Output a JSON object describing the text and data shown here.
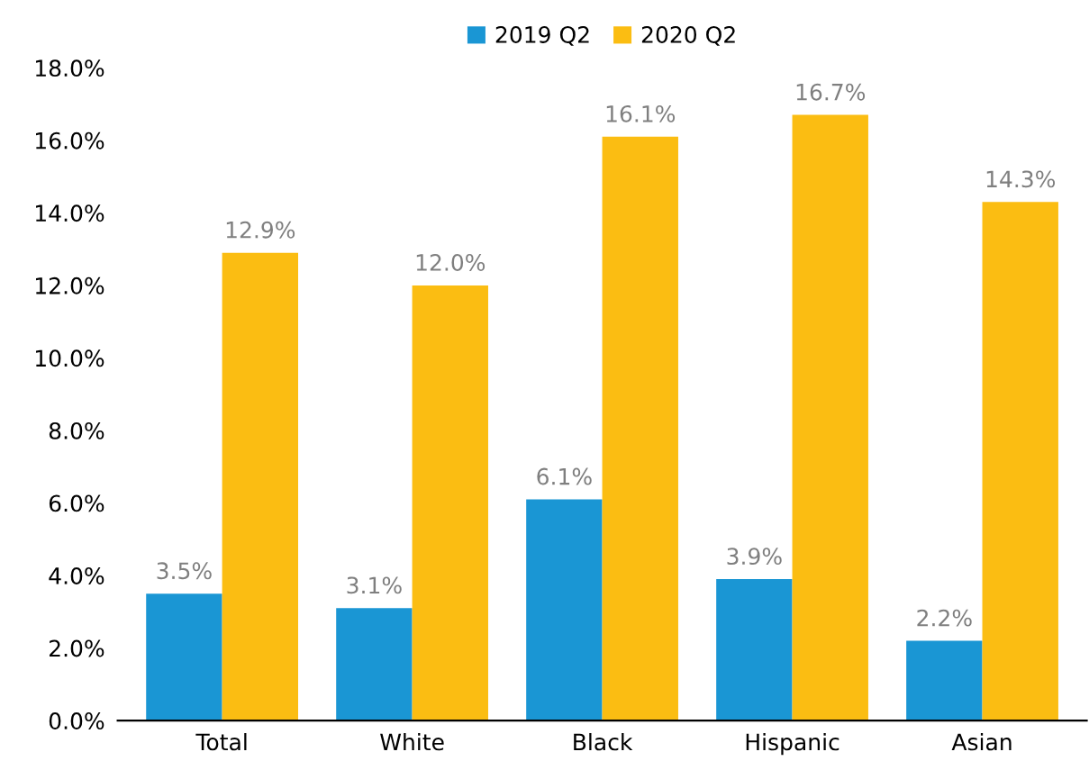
{
  "chart_data": {
    "type": "bar",
    "categories": [
      "Total",
      "White",
      "Black",
      "Hispanic",
      "Asian"
    ],
    "series": [
      {
        "name": "2019 Q2",
        "color": "#1a96d4",
        "values": [
          3.5,
          3.1,
          6.1,
          3.9,
          2.2
        ],
        "value_labels": [
          "3.5%",
          "3.1%",
          "6.1%",
          "3.9%",
          "2.2%"
        ]
      },
      {
        "name": "2020 Q2",
        "color": "#fbbd12",
        "values": [
          12.9,
          12.0,
          16.1,
          16.7,
          14.3
        ],
        "value_labels": [
          "12.9%",
          "12.0%",
          "16.1%",
          "16.7%",
          "14.3%"
        ]
      }
    ],
    "ylim": [
      0,
      18
    ],
    "yticks": [
      {
        "value": 0,
        "label": "0.0%"
      },
      {
        "value": 2,
        "label": "2.0%"
      },
      {
        "value": 4,
        "label": "4.0%"
      },
      {
        "value": 6,
        "label": "6.0%"
      },
      {
        "value": 8,
        "label": "8.0%"
      },
      {
        "value": 10,
        "label": "10.0%"
      },
      {
        "value": 12,
        "label": "12.0%"
      },
      {
        "value": 14,
        "label": "14.0%"
      },
      {
        "value": 16,
        "label": "16.0%"
      },
      {
        "value": 18,
        "label": "18.0%"
      }
    ],
    "legend": "top",
    "grid": false
  }
}
